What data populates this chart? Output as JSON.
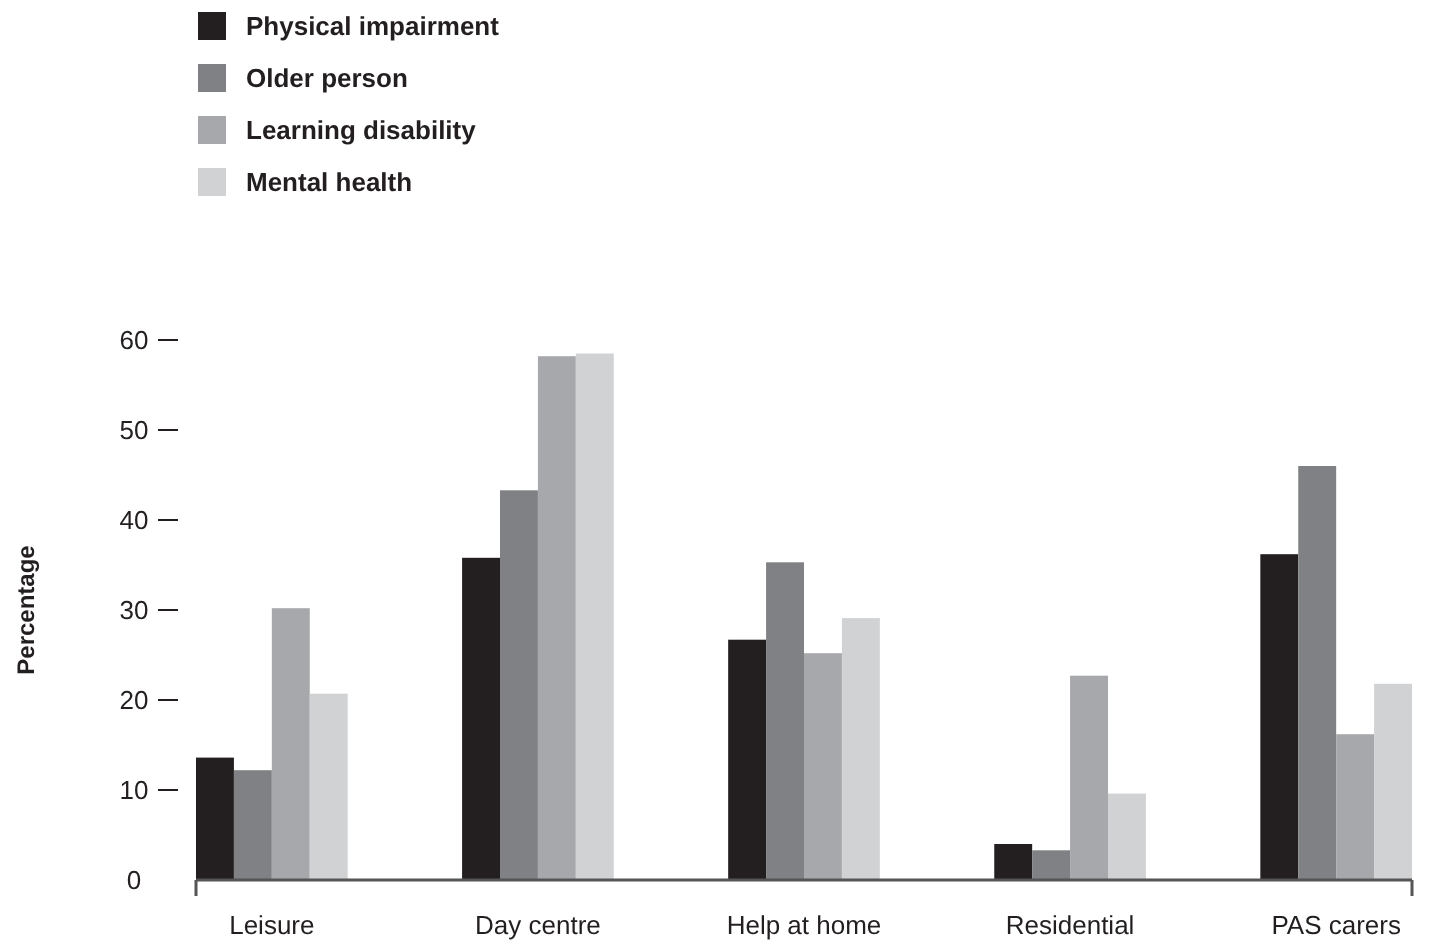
{
  "chart_data": {
    "type": "bar",
    "ylabel": "Percentage",
    "categories": [
      "Leisure",
      "Day centre",
      "Help at home",
      "Residential",
      "PAS carers"
    ],
    "series": [
      {
        "name": "Physical impairment",
        "color": "#231f20",
        "values": [
          13.6,
          35.8,
          26.7,
          4.0,
          36.2
        ]
      },
      {
        "name": "Older person",
        "color": "#808184",
        "values": [
          12.2,
          43.3,
          35.3,
          3.3,
          46.0
        ]
      },
      {
        "name": "Learning disability",
        "color": "#a7a8ab",
        "values": [
          30.2,
          58.2,
          25.2,
          22.7,
          16.2
        ]
      },
      {
        "name": "Mental health",
        "color": "#d1d2d4",
        "values": [
          20.7,
          58.5,
          29.1,
          9.6,
          21.8
        ]
      }
    ],
    "ylim": [
      0,
      60
    ],
    "yticks": [
      0,
      10,
      20,
      30,
      40,
      50,
      60
    ],
    "legend": "top left"
  }
}
